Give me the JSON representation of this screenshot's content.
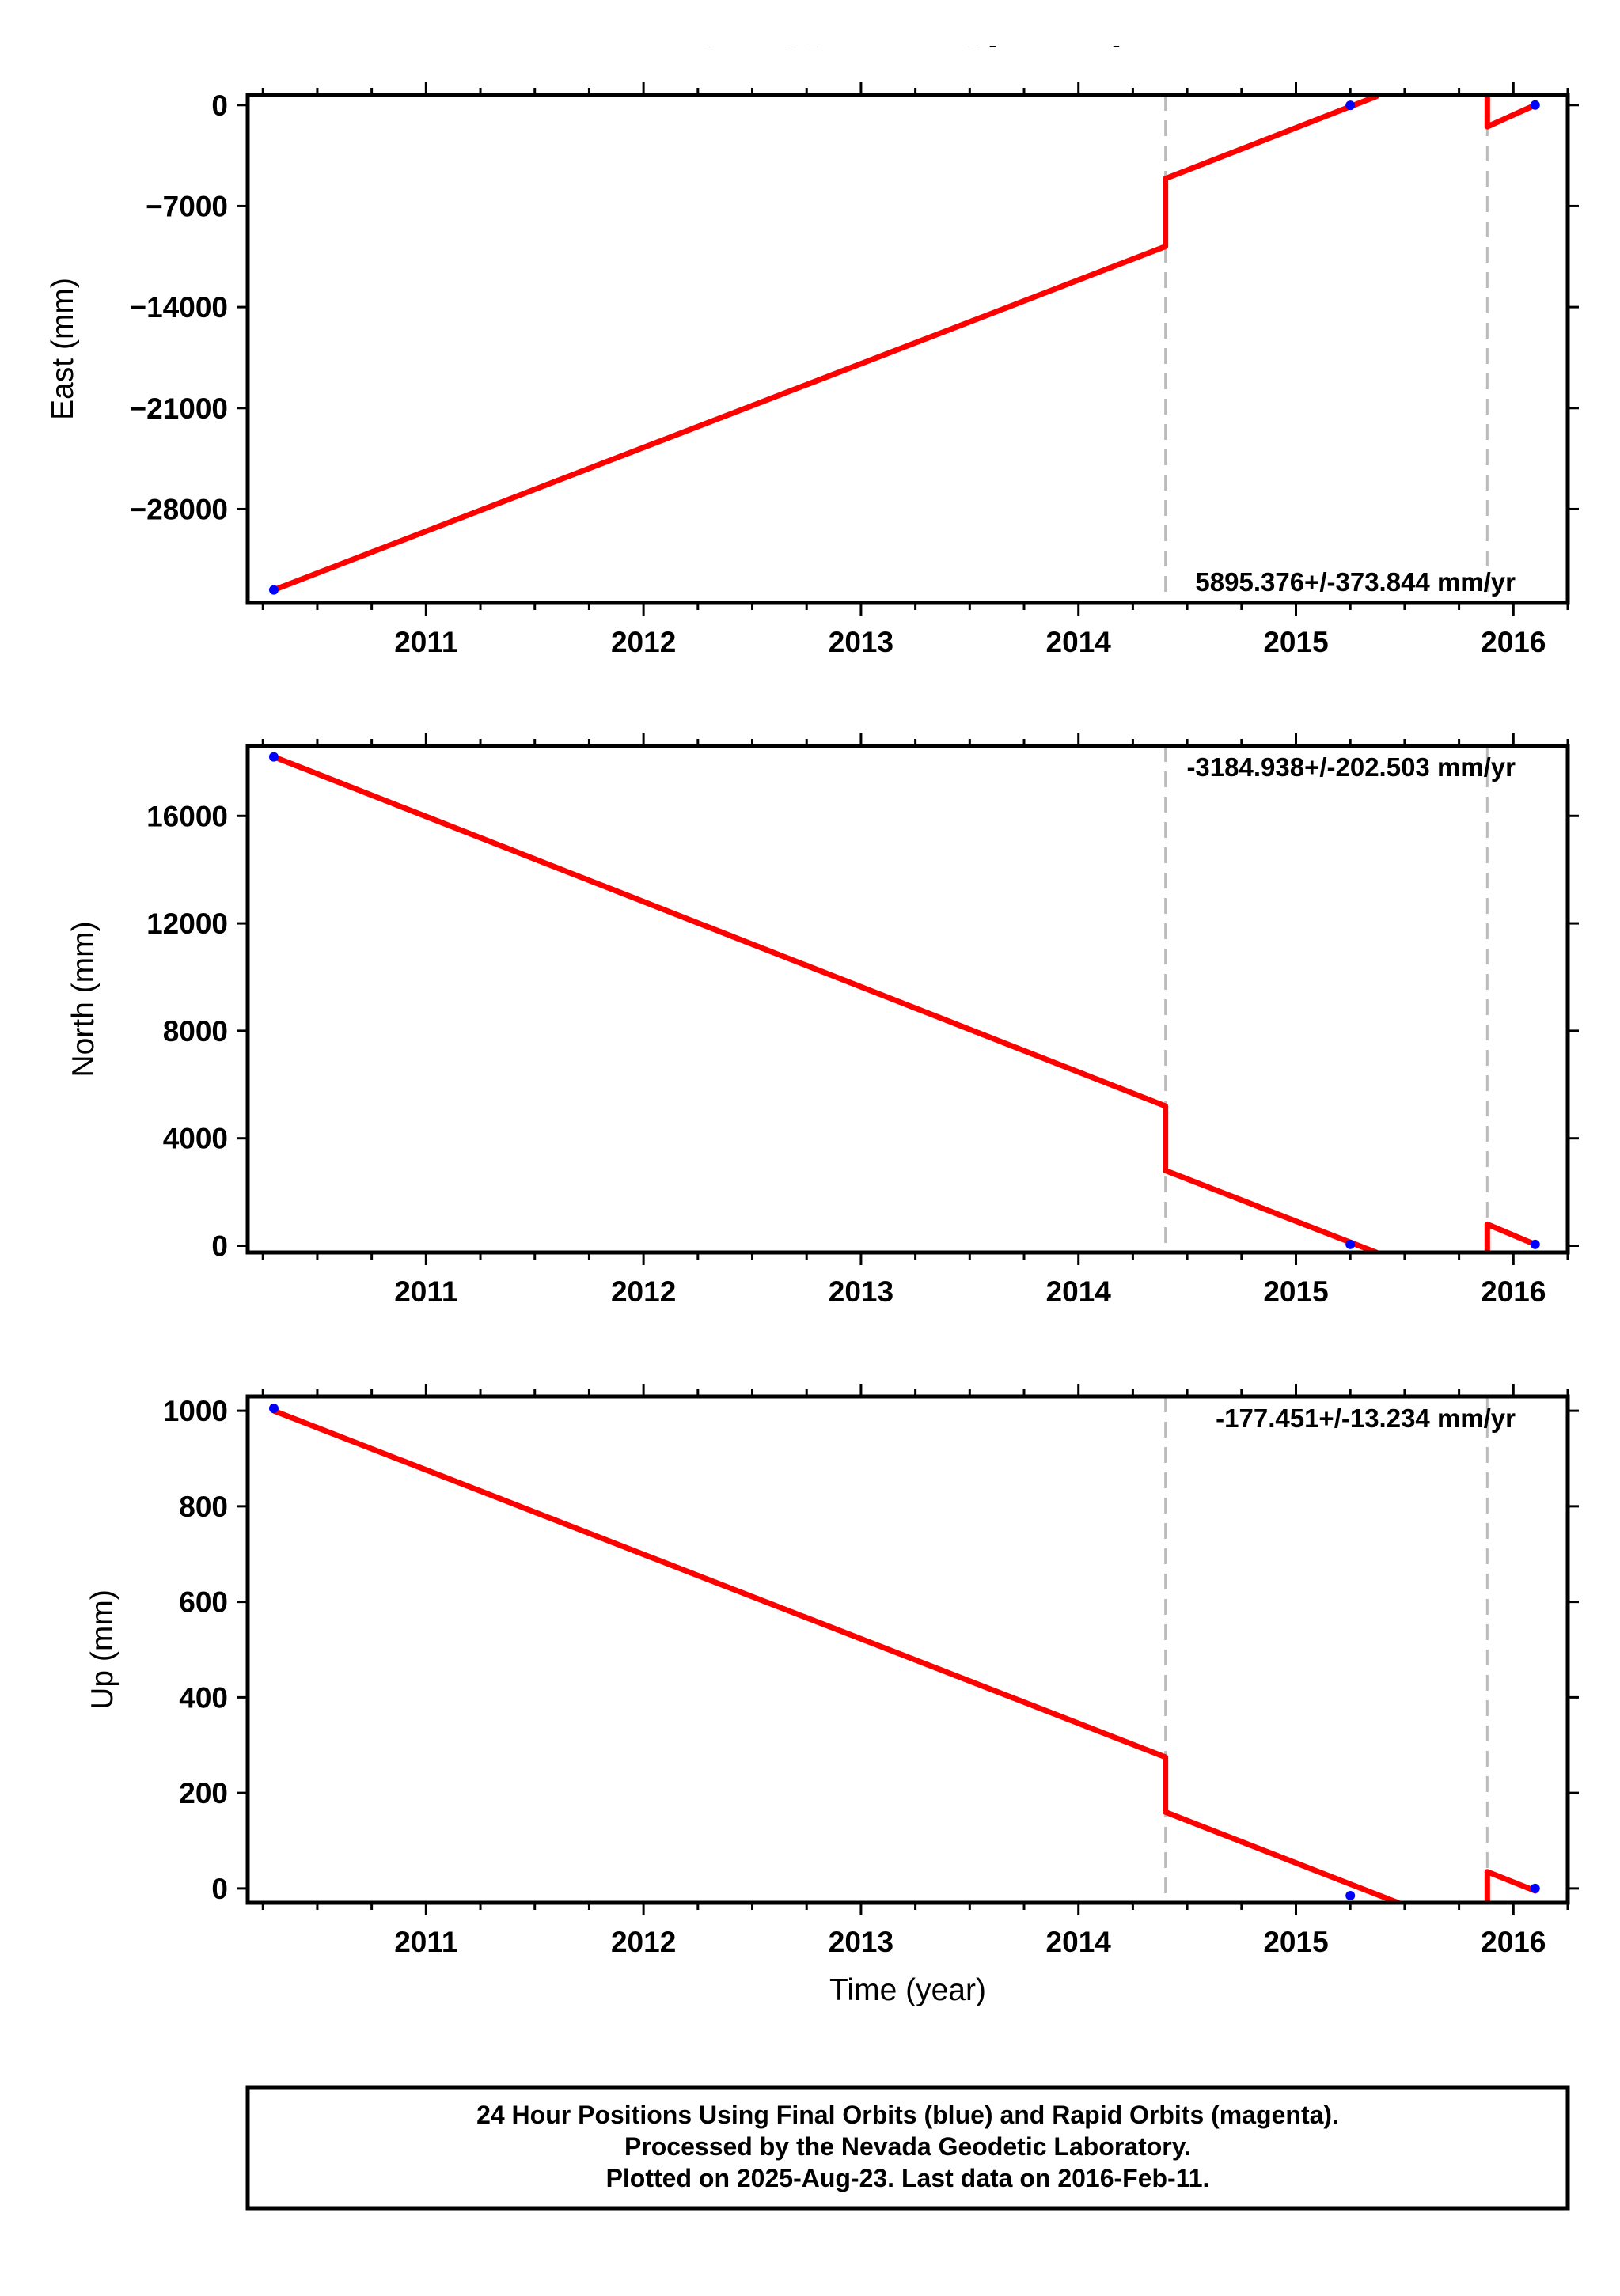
{
  "title": "GRAM  - EU - Cleaned",
  "footer": {
    "line1": "24 Hour Positions Using Final Orbits (blue) and Rapid Orbits (magenta).",
    "line2": "Processed by the Nevada Geodetic Laboratory.",
    "line3": "Plotted on 2025-Aug-23. Last data on 2016-Feb-11."
  },
  "colors": {
    "model": "#ff0000",
    "final": "#0000ff",
    "rapid": "#ff00ff",
    "step": "#bbbbbb"
  },
  "chart_data": [
    {
      "type": "line",
      "ylabel": "East (mm)",
      "xlabel": "",
      "rate_label": "5895.376+/-373.844 mm/yr",
      "xlim": [
        2010.18,
        2016.25
      ],
      "ylim": [
        -34500,
        700
      ],
      "yticks": [
        0,
        -7000,
        -14000,
        -21000,
        -28000
      ],
      "ytick_labels": [
        "0",
        "−7000",
        "−14000",
        "−21000",
        "−28000"
      ],
      "xticks": [
        2011,
        2012,
        2013,
        2014,
        2015,
        2016
      ],
      "xtick_labels": [
        "2011",
        "2012",
        "2013",
        "2014",
        "2015",
        "2016"
      ],
      "step_epochs": [
        2014.4,
        2015.88
      ],
      "model_segments": [
        {
          "x": [
            2010.3,
            2014.4
          ],
          "y": [
            -33600,
            -9800
          ]
        },
        {
          "x": [
            2014.4,
            2015.37
          ],
          "y": [
            -5100,
            600
          ]
        },
        {
          "x": [
            2015.88,
            2016.1
          ],
          "y": [
            -1500,
            0
          ]
        }
      ],
      "step_jumps": [
        {
          "x": 2014.4,
          "y": [
            -9800,
            -5100
          ]
        },
        {
          "x": 2015.88,
          "y": [
            -1500,
            600
          ]
        }
      ],
      "points": [
        {
          "x": 2010.3,
          "y": -33600,
          "orbit": "final"
        },
        {
          "x": 2015.25,
          "y": -20,
          "orbit": "final"
        },
        {
          "x": 2016.1,
          "y": 0,
          "orbit": "final"
        }
      ]
    },
    {
      "type": "line",
      "ylabel": "North (mm)",
      "xlabel": "",
      "rate_label": "-3184.938+/-202.503 mm/yr",
      "xlim": [
        2010.18,
        2016.25
      ],
      "ylim": [
        -250,
        18600
      ],
      "yticks": [
        0,
        4000,
        8000,
        12000,
        16000
      ],
      "ytick_labels": [
        "0",
        "4000",
        "8000",
        "12000",
        "16000"
      ],
      "xticks": [
        2011,
        2012,
        2013,
        2014,
        2015,
        2016
      ],
      "xtick_labels": [
        "2011",
        "2012",
        "2013",
        "2014",
        "2015",
        "2016"
      ],
      "step_epochs": [
        2014.4,
        2015.88
      ],
      "model_segments": [
        {
          "x": [
            2010.3,
            2014.4
          ],
          "y": [
            18200,
            5200
          ]
        },
        {
          "x": [
            2014.4,
            2015.37
          ],
          "y": [
            2800,
            -250
          ]
        },
        {
          "x": [
            2015.88,
            2016.1
          ],
          "y": [
            800,
            50
          ]
        }
      ],
      "step_jumps": [
        {
          "x": 2014.4,
          "y": [
            5200,
            2800
          ]
        },
        {
          "x": 2015.88,
          "y": [
            -250,
            800
          ]
        }
      ],
      "points": [
        {
          "x": 2010.3,
          "y": 18200,
          "orbit": "final"
        },
        {
          "x": 2015.25,
          "y": 50,
          "orbit": "final"
        },
        {
          "x": 2016.1,
          "y": 50,
          "orbit": "final"
        }
      ]
    },
    {
      "type": "line",
      "ylabel": "Up (mm)",
      "xlabel": "Time (year)",
      "rate_label": "-177.451+/-13.234 mm/yr",
      "xlim": [
        2010.18,
        2016.25
      ],
      "ylim": [
        -30,
        1030
      ],
      "yticks": [
        0,
        200,
        400,
        600,
        800,
        1000
      ],
      "ytick_labels": [
        "0",
        "200",
        "400",
        "600",
        "800",
        "1000"
      ],
      "xticks": [
        2011,
        2012,
        2013,
        2014,
        2015,
        2016
      ],
      "xtick_labels": [
        "2011",
        "2012",
        "2013",
        "2014",
        "2015",
        "2016"
      ],
      "step_epochs": [
        2014.4,
        2015.88
      ],
      "model_segments": [
        {
          "x": [
            2010.3,
            2014.4
          ],
          "y": [
            1000,
            275
          ]
        },
        {
          "x": [
            2014.4,
            2015.47
          ],
          "y": [
            160,
            -30
          ]
        },
        {
          "x": [
            2015.88,
            2016.1
          ],
          "y": [
            35,
            -5
          ]
        }
      ],
      "step_jumps": [
        {
          "x": 2014.4,
          "y": [
            275,
            160
          ]
        },
        {
          "x": 2015.88,
          "y": [
            -30,
            35
          ]
        }
      ],
      "points": [
        {
          "x": 2010.3,
          "y": 1005,
          "orbit": "final"
        },
        {
          "x": 2015.25,
          "y": -15,
          "orbit": "final"
        },
        {
          "x": 2016.1,
          "y": 0,
          "orbit": "final"
        }
      ]
    }
  ]
}
